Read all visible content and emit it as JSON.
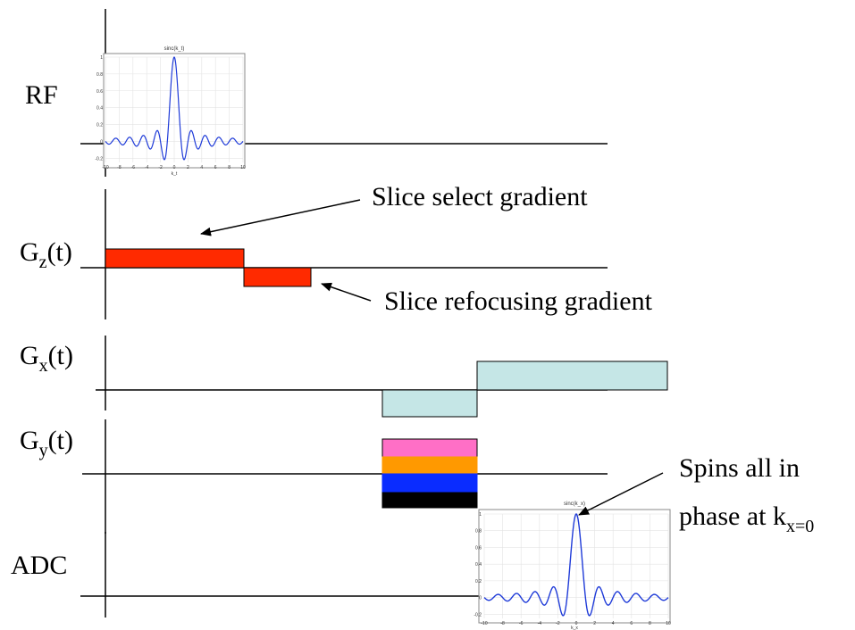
{
  "channels": {
    "rf": "RF",
    "gz": {
      "main": "G",
      "sub": "z",
      "suffix": "(t)"
    },
    "gx": {
      "main": "G",
      "sub": "x",
      "suffix": "(t)"
    },
    "gy": {
      "main": "G",
      "sub": "y",
      "suffix": "(t)"
    },
    "adc": "ADC"
  },
  "annotations": {
    "slice_select": "Slice select gradient",
    "slice_refocus": "Slice refocusing gradient",
    "spins_line1": "Spins all in",
    "spins_line2_main": "phase at k",
    "spins_line2_sub": "x=0"
  },
  "colors": {
    "gz": "#ff2a00",
    "gx": "#c5e6e6",
    "gy_steps": [
      "#ff6fc6",
      "#ff9900",
      "#0a2cff",
      "#000000"
    ],
    "curve": "#1f3bd8"
  },
  "insets": {
    "rf": {
      "title": "sinc(k_t)",
      "xlabel": "k_t",
      "x_ticks": [
        "-10",
        "-8",
        "-6",
        "-4",
        "-2",
        "0",
        "2",
        "4",
        "6",
        "8",
        "10"
      ],
      "y_ticks": [
        "1",
        "0.8",
        "0.6",
        "0.4",
        "0.2",
        "0",
        "-0.2"
      ]
    },
    "adc": {
      "title": "sinc(k_x)",
      "xlabel": "k_x",
      "x_ticks": [
        "-10",
        "-8",
        "-6",
        "-4",
        "-2",
        "0",
        "2",
        "4",
        "6",
        "8",
        "10"
      ],
      "y_ticks": [
        "1",
        "0.8",
        "0.6",
        "0.4",
        "0.2",
        "0",
        "-0.2"
      ]
    }
  }
}
